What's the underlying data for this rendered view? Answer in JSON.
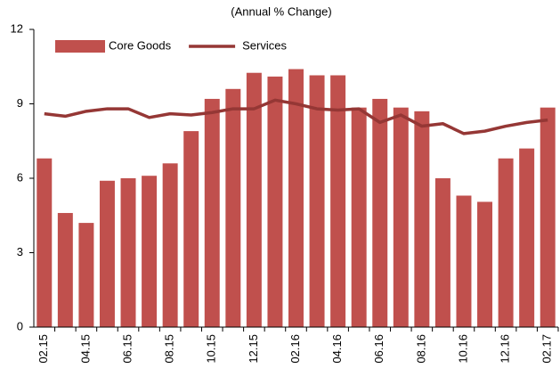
{
  "chart_data": {
    "type": "bar",
    "title": "(Annual % Change)",
    "categories": [
      "02.15",
      null,
      "04.15",
      null,
      "06.15",
      null,
      "08.15",
      null,
      "10.15",
      null,
      "12.15",
      null,
      "02.16",
      null,
      "04.16",
      null,
      "06.16",
      null,
      "08.16",
      null,
      "10.16",
      null,
      "12.16",
      null,
      "02.17"
    ],
    "series": [
      {
        "name": "Core Goods",
        "type": "bar",
        "color": "#c0504d",
        "values": [
          6.8,
          4.6,
          4.2,
          5.9,
          6.0,
          6.1,
          6.6,
          7.9,
          9.2,
          9.6,
          10.25,
          10.1,
          10.4,
          10.15,
          10.15,
          8.85,
          9.2,
          8.85,
          8.7,
          6.0,
          5.3,
          5.05,
          6.8,
          7.2,
          8.85
        ]
      },
      {
        "name": "Services",
        "type": "line",
        "color": "#953735",
        "values": [
          8.6,
          8.5,
          8.7,
          8.8,
          8.8,
          8.45,
          8.6,
          8.55,
          8.65,
          8.8,
          8.8,
          9.15,
          9.0,
          8.8,
          8.75,
          8.8,
          8.25,
          8.55,
          8.1,
          8.2,
          7.8,
          7.9,
          8.1,
          8.25,
          8.35
        ]
      }
    ],
    "ylim": [
      0,
      12
    ],
    "yticks": [
      0,
      3,
      6,
      9,
      12
    ],
    "grid": false,
    "legend": "top-left"
  }
}
